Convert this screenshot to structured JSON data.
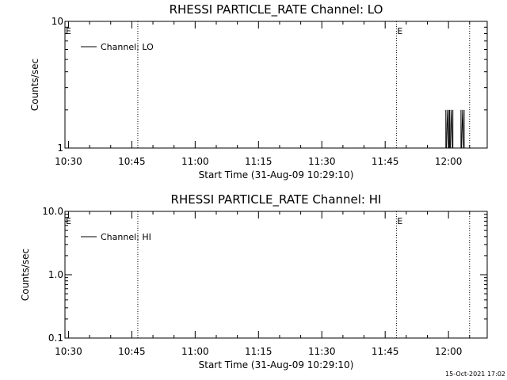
{
  "chart_data": [
    {
      "type": "line",
      "title": "RHESSI PARTICLE_RATE Channel: LO",
      "xlabel": "Start Time (31-Aug-09 10:29:10)",
      "ylabel": "Counts/sec",
      "y_scale": "log",
      "ylim": [
        1,
        10
      ],
      "yticks": [
        1,
        10
      ],
      "ytick_labels": [
        "1",
        "10"
      ],
      "xlim": [
        "10:29:10",
        "12:09:10"
      ],
      "xticks": [
        "10:30",
        "10:45",
        "11:00",
        "11:15",
        "11:30",
        "11:45",
        "12:00"
      ],
      "legend": {
        "position": "top-left",
        "entries": [
          "Channel: LO"
        ]
      },
      "vertical_lines": [
        "10:46:25",
        "11:47:40",
        "12:05:00"
      ],
      "event_markers": [
        {
          "label": "E",
          "time": "10:29:10"
        },
        {
          "label": "E",
          "time": "11:47:40"
        }
      ],
      "grid": false,
      "series": [
        {
          "name": "Channel: LO",
          "points": [
            {
              "t": "11:59:30",
              "y": 1
            },
            {
              "t": "11:59:45",
              "y": 2
            },
            {
              "t": "12:00:00",
              "y": 1
            },
            {
              "t": "12:00:25",
              "y": 1
            },
            {
              "t": "12:00:40",
              "y": 2
            },
            {
              "t": "12:00:55",
              "y": 1
            },
            {
              "t": "12:03:05",
              "y": 1
            },
            {
              "t": "12:03:20",
              "y": 2
            },
            {
              "t": "12:03:35",
              "y": 1
            }
          ]
        }
      ]
    },
    {
      "type": "line",
      "title": "RHESSI PARTICLE_RATE Channel: HI",
      "xlabel": "Start Time (31-Aug-09 10:29:10)",
      "ylabel": "Counts/sec",
      "y_scale": "log",
      "ylim": [
        0.1,
        10
      ],
      "yticks": [
        0.1,
        1,
        10
      ],
      "ytick_labels": [
        "0.1",
        "1.0",
        "10.0"
      ],
      "xlim": [
        "10:29:10",
        "12:09:10"
      ],
      "xticks": [
        "10:30",
        "10:45",
        "11:00",
        "11:15",
        "11:30",
        "11:45",
        "12:00"
      ],
      "legend": {
        "position": "top-left",
        "entries": [
          "Channel: HI"
        ]
      },
      "vertical_lines": [
        "10:46:25",
        "11:47:40",
        "12:05:00"
      ],
      "event_markers": [
        {
          "label": "E",
          "time": "10:29:10"
        },
        {
          "label": "E",
          "time": "11:47:40"
        }
      ],
      "grid": false,
      "series": [
        {
          "name": "Channel: HI",
          "points": []
        }
      ]
    }
  ],
  "footer": {
    "timestamp": "15-Oct-2021 17:02"
  }
}
